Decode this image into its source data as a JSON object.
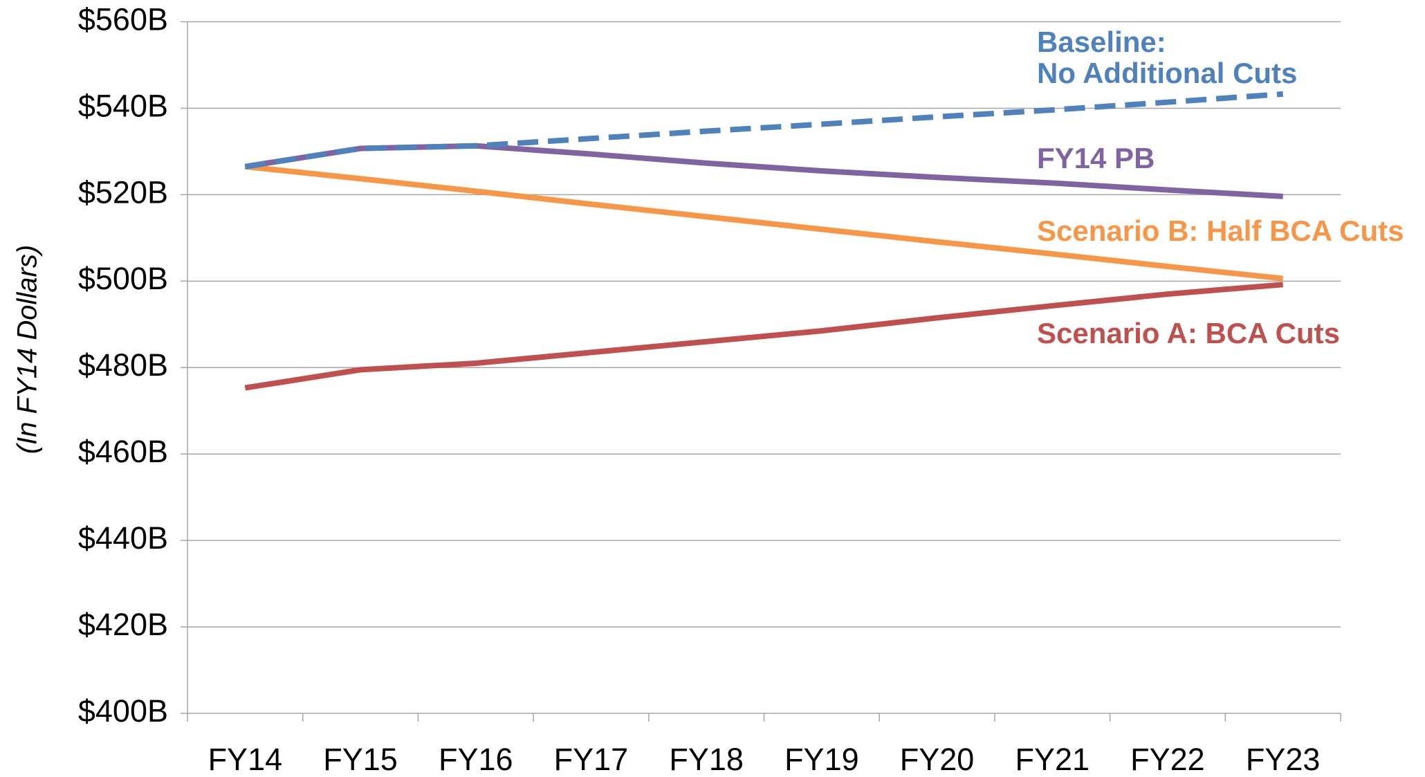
{
  "chart_data": {
    "type": "line",
    "y_label": "(In FY14 Dollars)",
    "categories": [
      "FY14",
      "FY15",
      "FY16",
      "FY17",
      "FY18",
      "FY19",
      "FY20",
      "FY21",
      "FY22",
      "FY23"
    ],
    "series": [
      {
        "name": "Baseline:\nNo Additional Cuts",
        "color": "#4f81bd",
        "dashed": true,
        "values": [
          526.5,
          530.7,
          531.3,
          533.0,
          534.7,
          536.3,
          538.0,
          539.6,
          541.4,
          543.3
        ]
      },
      {
        "name": "FY14 PB",
        "color": "#8064a2",
        "values": [
          526.5,
          530.7,
          531.3,
          529.4,
          527.3,
          525.5,
          524.0,
          522.7,
          521.1,
          519.6
        ]
      },
      {
        "name": "Scenario B: Half BCA Cuts",
        "color": "#f79646",
        "values": [
          526.5,
          523.7,
          520.8,
          517.8,
          514.9,
          512.0,
          509.1,
          506.3,
          503.4,
          500.6
        ]
      },
      {
        "name": "Scenario A: BCA Cuts",
        "color": "#c0504d",
        "values": [
          475.3,
          479.5,
          481.0,
          483.5,
          486.0,
          488.5,
          491.5,
          494.3,
          497.0,
          499.2
        ]
      }
    ],
    "ylim": [
      400,
      560
    ],
    "yticks": [
      {
        "value": 400,
        "label": "$400B"
      },
      {
        "value": 420,
        "label": "$420B"
      },
      {
        "value": 440,
        "label": "$440B"
      },
      {
        "value": 460,
        "label": "$460B"
      },
      {
        "value": 480,
        "label": "$480B"
      },
      {
        "value": 500,
        "label": "$500B"
      },
      {
        "value": 520,
        "label": "$520B"
      },
      {
        "value": 540,
        "label": "$540B"
      },
      {
        "value": 560,
        "label": "$560B"
      }
    ],
    "grid": true
  }
}
